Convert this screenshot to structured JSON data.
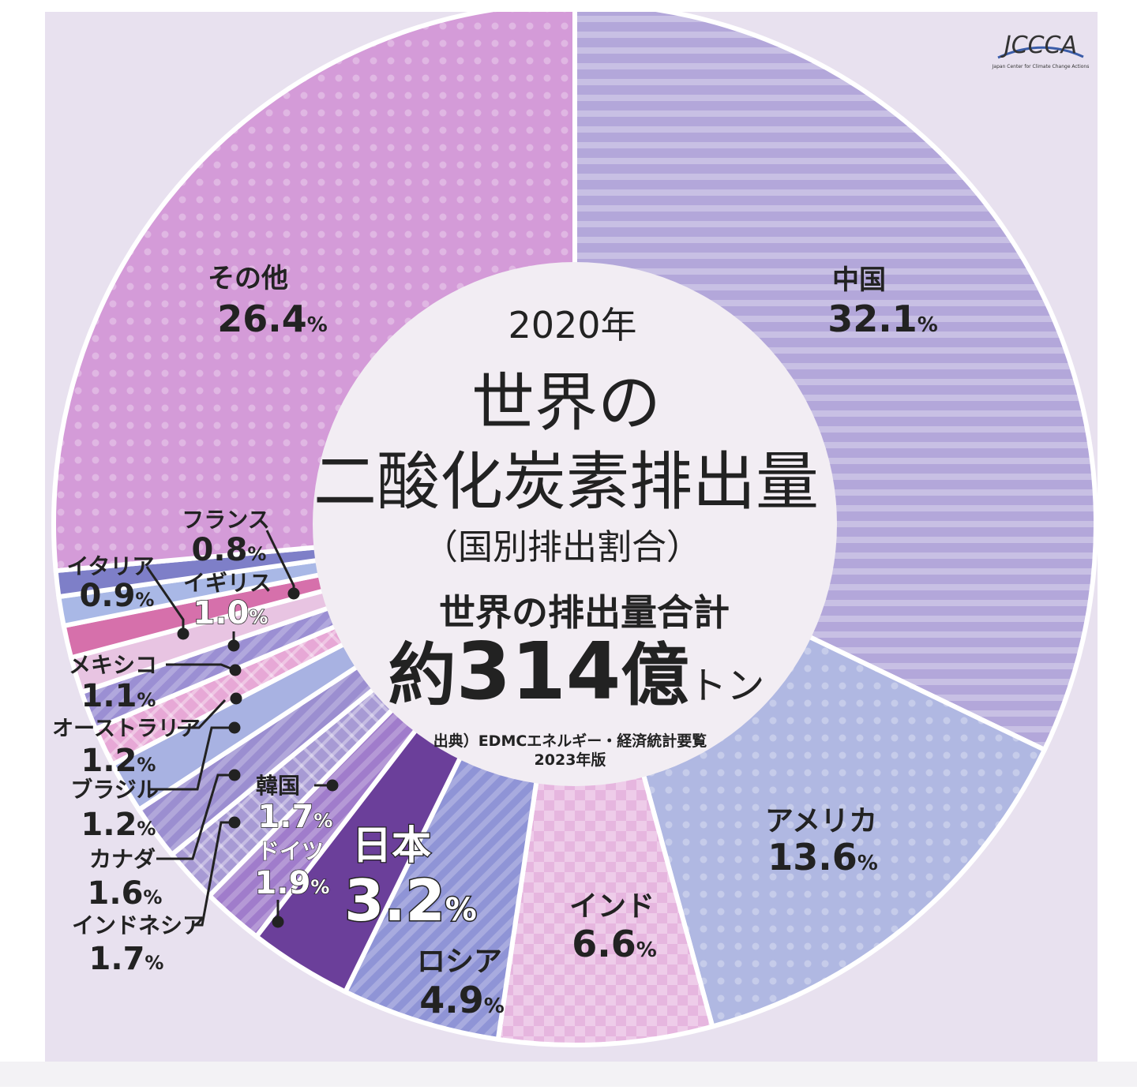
{
  "logo": {
    "text": "JCCCA",
    "subtext": "Japan Center for Climate Change Actions"
  },
  "center": {
    "year": "2020年",
    "title_line1": "世界の",
    "title_line2": "二酸化炭素排出量",
    "subtitle": "（国別排出割合）",
    "total_label": "世界の排出量合計",
    "total_prefix": "約",
    "total_value": "314",
    "total_unit1": "億",
    "total_unit2": "トン",
    "source_line1": "出典）EDMCエネルギー・経済統計要覧",
    "source_line2": "2023年版"
  },
  "chart_data": {
    "type": "pie",
    "donut": true,
    "start": "12 o'clock",
    "direction": "clockwise",
    "slices": [
      {
        "name": "中国",
        "value": 32.1,
        "label": "32.1",
        "unit": "%",
        "color": "#b3a7da",
        "pattern": "stripes-h"
      },
      {
        "name": "アメリカ",
        "value": 13.6,
        "label": "13.6",
        "unit": "%",
        "color": "#b0b8e2",
        "pattern": "dots"
      },
      {
        "name": "インド",
        "value": 6.6,
        "label": "6.6",
        "unit": "%",
        "color": "#e6b6df",
        "pattern": "checker"
      },
      {
        "name": "ロシア",
        "value": 4.9,
        "label": "4.9",
        "unit": "%",
        "color": "#8f94d6",
        "pattern": "stripes-diag"
      },
      {
        "name": "日本",
        "value": 3.2,
        "label": "3.2",
        "unit": "%",
        "color": "#6b3f9a",
        "pattern": "solid"
      },
      {
        "name": "ドイツ",
        "value": 1.9,
        "label": "1.9",
        "unit": "%",
        "color": "#a07ccb",
        "pattern": "stripes-diag"
      },
      {
        "name": "韓国",
        "value": 1.7,
        "label": "1.7",
        "unit": "%",
        "color": "#a79ad4",
        "pattern": "crosshatch"
      },
      {
        "name": "インドネシア",
        "value": 1.7,
        "label": "1.7",
        "unit": "%",
        "color": "#9b8ed0",
        "pattern": "stripes-diag"
      },
      {
        "name": "カナダ",
        "value": 1.6,
        "label": "1.6",
        "unit": "%",
        "color": "#a8b2e2",
        "pattern": "solid"
      },
      {
        "name": "ブラジル",
        "value": 1.2,
        "label": "1.2",
        "unit": "%",
        "color": "#e7a8d6",
        "pattern": "crosshatch"
      },
      {
        "name": "オーストラリア",
        "value": 1.2,
        "label": "1.2",
        "unit": "%",
        "color": "#9b8fd3",
        "pattern": "stripes-diag"
      },
      {
        "name": "メキシコ",
        "value": 1.1,
        "label": "1.1",
        "unit": "%",
        "color": "#e8c4e2",
        "pattern": "solid"
      },
      {
        "name": "イギリス",
        "value": 1.0,
        "label": "1.0",
        "unit": "%",
        "color": "#d670ab",
        "pattern": "solid"
      },
      {
        "name": "イタリア",
        "value": 0.9,
        "label": "0.9",
        "unit": "%",
        "color": "#a9b8e6",
        "pattern": "solid"
      },
      {
        "name": "フランス",
        "value": 0.8,
        "label": "0.8",
        "unit": "%",
        "color": "#7e7fc8",
        "pattern": "solid"
      },
      {
        "name": "その他",
        "value": 26.4,
        "label": "26.4",
        "unit": "%",
        "color": "#d49bd8",
        "pattern": "dots"
      }
    ],
    "extra_sliver_color": "#9fd0ee"
  },
  "colors": {
    "background": "#e8e1ef",
    "text": "#222222",
    "divider": "#ffffff",
    "center_fill": "#f2edf3",
    "leader": "#222222"
  }
}
